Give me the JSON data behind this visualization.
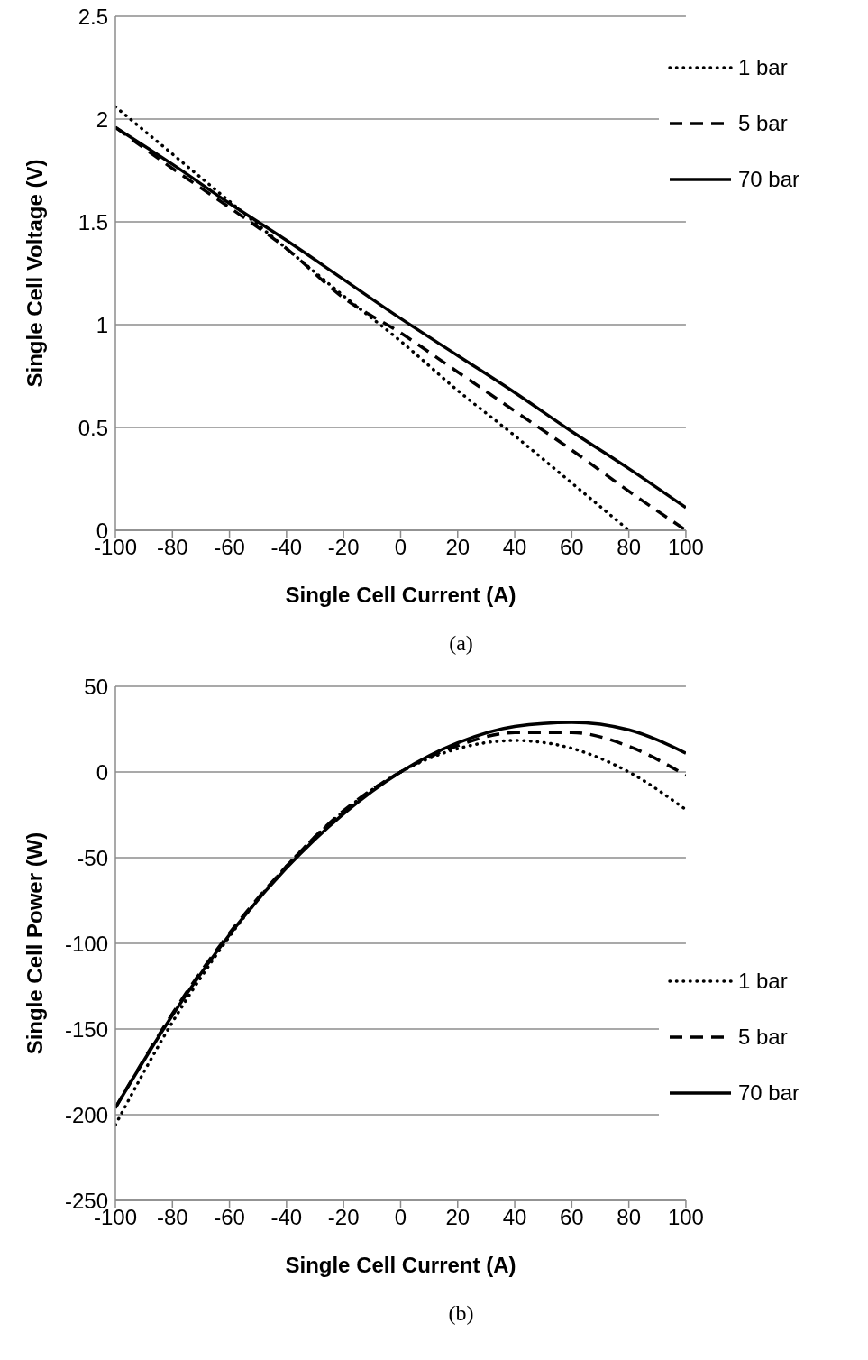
{
  "chart_data": [
    {
      "type": "line",
      "xlabel": "Single Cell Current (A)",
      "ylabel": "Single Cell Voltage (V)",
      "annotations": [
        "(a)"
      ],
      "x": [
        -100,
        -80,
        -60,
        -40,
        -20,
        0,
        20,
        40,
        60,
        80,
        100
      ],
      "xlim": [
        -100,
        100
      ],
      "xticks": [
        -100,
        -80,
        -60,
        -40,
        -20,
        0,
        20,
        40,
        60,
        80,
        100
      ],
      "ylim": [
        0,
        2.5
      ],
      "yticks": [
        0,
        0.5,
        1,
        1.5,
        2,
        2.5
      ],
      "grid": "y",
      "legend": "top right",
      "marker": "none",
      "series": [
        {
          "name": "1 bar",
          "color": "#000000",
          "line_style": "dotted",
          "values": [
            2.06,
            1.83,
            1.6,
            1.37,
            1.14,
            0.92,
            0.68,
            0.46,
            0.23,
            0,
            null
          ]
        },
        {
          "name": "5 bar",
          "color": "#000000",
          "line_style": "dashed",
          "values": [
            1.96,
            1.76,
            1.57,
            1.37,
            1.13,
            0.96,
            0.77,
            0.58,
            0.39,
            0.19,
            0
          ]
        },
        {
          "name": "70 bar",
          "color": "#000000",
          "line_style": "solid",
          "values": [
            1.96,
            1.78,
            1.59,
            1.41,
            1.22,
            1.03,
            0.85,
            0.67,
            0.48,
            0.3,
            0.11
          ]
        }
      ]
    },
    {
      "type": "line",
      "xlabel": "Single Cell Current (A)",
      "ylabel": "Single Cell Power (W)",
      "annotations": [
        "(b)"
      ],
      "x": [
        -100,
        -80,
        -60,
        -40,
        -20,
        0,
        20,
        40,
        60,
        80,
        100
      ],
      "xlim": [
        -100,
        100
      ],
      "xticks": [
        -100,
        -80,
        -60,
        -40,
        -20,
        0,
        20,
        40,
        60,
        80,
        100
      ],
      "ylim": [
        -250,
        50
      ],
      "yticks": [
        -250,
        -200,
        -150,
        -100,
        -50,
        0,
        50
      ],
      "grid": "y",
      "legend": "right",
      "marker": "none",
      "series": [
        {
          "name": "1 bar",
          "color": "#000000",
          "line_style": "dotted",
          "values": [
            -206,
            -146,
            -96,
            -55,
            -23,
            0,
            13.6,
            18.4,
            13.8,
            0,
            -22
          ]
        },
        {
          "name": "5 bar",
          "color": "#000000",
          "line_style": "dashed",
          "values": [
            -196,
            -141,
            -94,
            -55,
            -22.6,
            0,
            15.4,
            23,
            23,
            15,
            -2
          ]
        },
        {
          "name": "70 bar",
          "color": "#000000",
          "line_style": "solid",
          "values": [
            -196,
            -142,
            -95,
            -56,
            -24.4,
            0,
            17,
            26.6,
            29,
            24.6,
            11
          ]
        }
      ]
    }
  ]
}
